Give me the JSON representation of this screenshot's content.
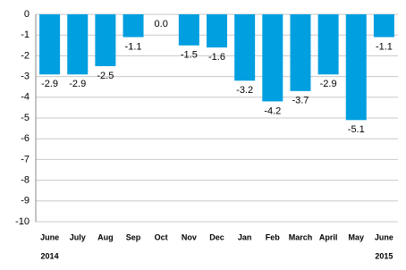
{
  "chart_data": {
    "type": "bar",
    "categories": [
      "June",
      "July",
      "Aug",
      "Sep",
      "Oct",
      "Nov",
      "Dec",
      "Jan",
      "Feb",
      "March",
      "April",
      "May",
      "June"
    ],
    "values": [
      -2.9,
      -2.9,
      -2.5,
      -1.1,
      0.0,
      -1.5,
      -1.6,
      -3.2,
      -4.2,
      -3.7,
      -2.9,
      -5.1,
      -1.1
    ],
    "value_labels": [
      "-2.9",
      "-2.9",
      "-2.5",
      "-1.1",
      "0.0",
      "-1.5",
      "-1.6",
      "-3.2",
      "-4.2",
      "-3.7",
      "-2.9",
      "-5.1",
      "-1.1"
    ],
    "year_labels": [
      "2014",
      "2015"
    ],
    "color": "#009fe0",
    "ylim": [
      -10,
      0
    ],
    "yticks": [
      0,
      -1,
      -2,
      -3,
      -4,
      -5,
      -6,
      -7,
      -8,
      -9,
      -10
    ],
    "grid": true
  }
}
